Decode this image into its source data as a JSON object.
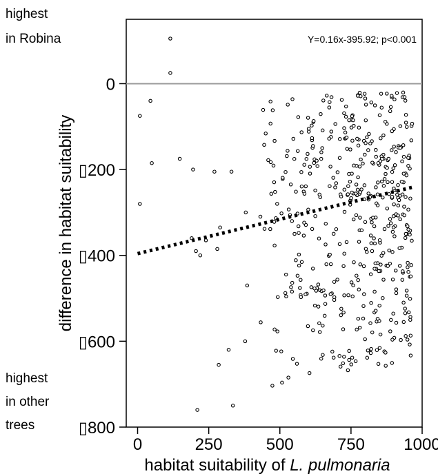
{
  "chart_data": {
    "type": "scatter",
    "xlabel_prefix": "habitat suitability of ",
    "xlabel_species": "L. pulmonaria",
    "ylabel": "difference in habitat suitability",
    "annotation": "Y=0.16x-395.92; p<0.001",
    "top_label": [
      "highest",
      "in Robina"
    ],
    "bottom_label": [
      "highest",
      "in other",
      "trees"
    ],
    "xlim": [
      -40,
      1000
    ],
    "ylim": [
      -800,
      150
    ],
    "x_ticks": [
      0,
      250,
      500,
      750,
      1000
    ],
    "x_tick_labels": [
      "0",
      "250",
      "500",
      "750",
      "1000"
    ],
    "y_ticks": [
      0,
      -200,
      -400,
      -600,
      -800
    ],
    "y_tick_labels": [
      "0",
      "▯200",
      "▯400",
      "▯600",
      "▯800"
    ],
    "reference_line_y": 0,
    "trend": {
      "slope": 0.16,
      "intercept": -395.92,
      "x_range": [
        0,
        965
      ]
    },
    "grid": false,
    "point_count": 520
  }
}
